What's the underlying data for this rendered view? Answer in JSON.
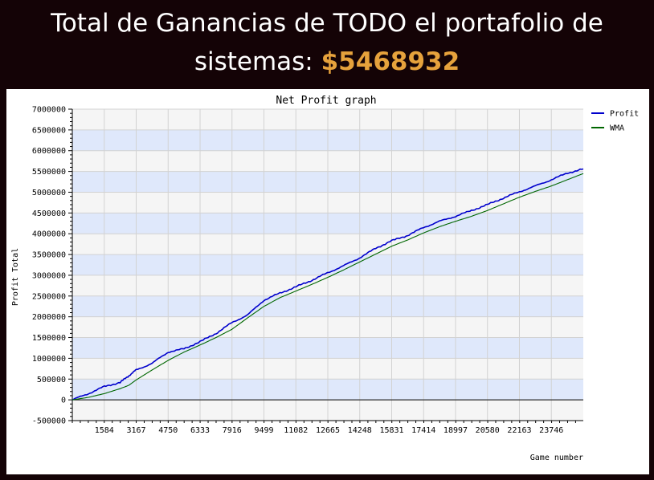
{
  "header": {
    "title_prefix": "Total de Ganancias de TODO el portafolio de sistemas:",
    "total_amount": "$5468932"
  },
  "chart_data": {
    "type": "line",
    "title": "Net Profit graph",
    "xlabel": "Game number",
    "ylabel": "Profit Total",
    "xlim": [
      0,
      25330
    ],
    "ylim": [
      -500000,
      7000000
    ],
    "x_tick_labels": [
      "1584",
      "3167",
      "4750",
      "6333",
      "7916",
      "9499",
      "11082",
      "12665",
      "14248",
      "15831",
      "17414",
      "18997",
      "20580",
      "22163",
      "23746"
    ],
    "y_tick_labels": [
      "7000000",
      "6500000",
      "6000000",
      "5500000",
      "5000000",
      "4500000",
      "4000000",
      "3500000",
      "3000000",
      "2500000",
      "2000000",
      "1500000",
      "1000000",
      "500000",
      "0",
      "-500000"
    ],
    "legend_position": "top-right",
    "band_colors": [
      "#dfe8fb",
      "#f5f5f5"
    ],
    "grid": true,
    "x": [
      0,
      800,
      1584,
      2375,
      2800,
      3167,
      3958,
      4750,
      5540,
      6333,
      7125,
      7916,
      8708,
      9499,
      10290,
      11082,
      11873,
      12665,
      13456,
      14248,
      15040,
      15831,
      16622,
      17414,
      18205,
      18997,
      19788,
      20580,
      21371,
      22163,
      22954,
      23746,
      24537,
      25330
    ],
    "series": [
      {
        "name": "Profit",
        "color": "#0000cc",
        "values": [
          0,
          150000,
          320000,
          420000,
          580000,
          720000,
          880000,
          1150000,
          1230000,
          1400000,
          1600000,
          1860000,
          2050000,
          2400000,
          2570000,
          2720000,
          2880000,
          3060000,
          3230000,
          3420000,
          3650000,
          3830000,
          3960000,
          4150000,
          4300000,
          4420000,
          4560000,
          4700000,
          4860000,
          5010000,
          5150000,
          5300000,
          5460000,
          5560000
        ]
      },
      {
        "name": "WMA",
        "color": "#006600",
        "values": [
          0,
          60000,
          150000,
          270000,
          350000,
          480000,
          720000,
          950000,
          1150000,
          1320000,
          1500000,
          1700000,
          1980000,
          2250000,
          2460000,
          2620000,
          2780000,
          2950000,
          3130000,
          3320000,
          3510000,
          3700000,
          3850000,
          4020000,
          4170000,
          4300000,
          4420000,
          4560000,
          4720000,
          4880000,
          5020000,
          5150000,
          5300000,
          5450000
        ]
      }
    ]
  }
}
